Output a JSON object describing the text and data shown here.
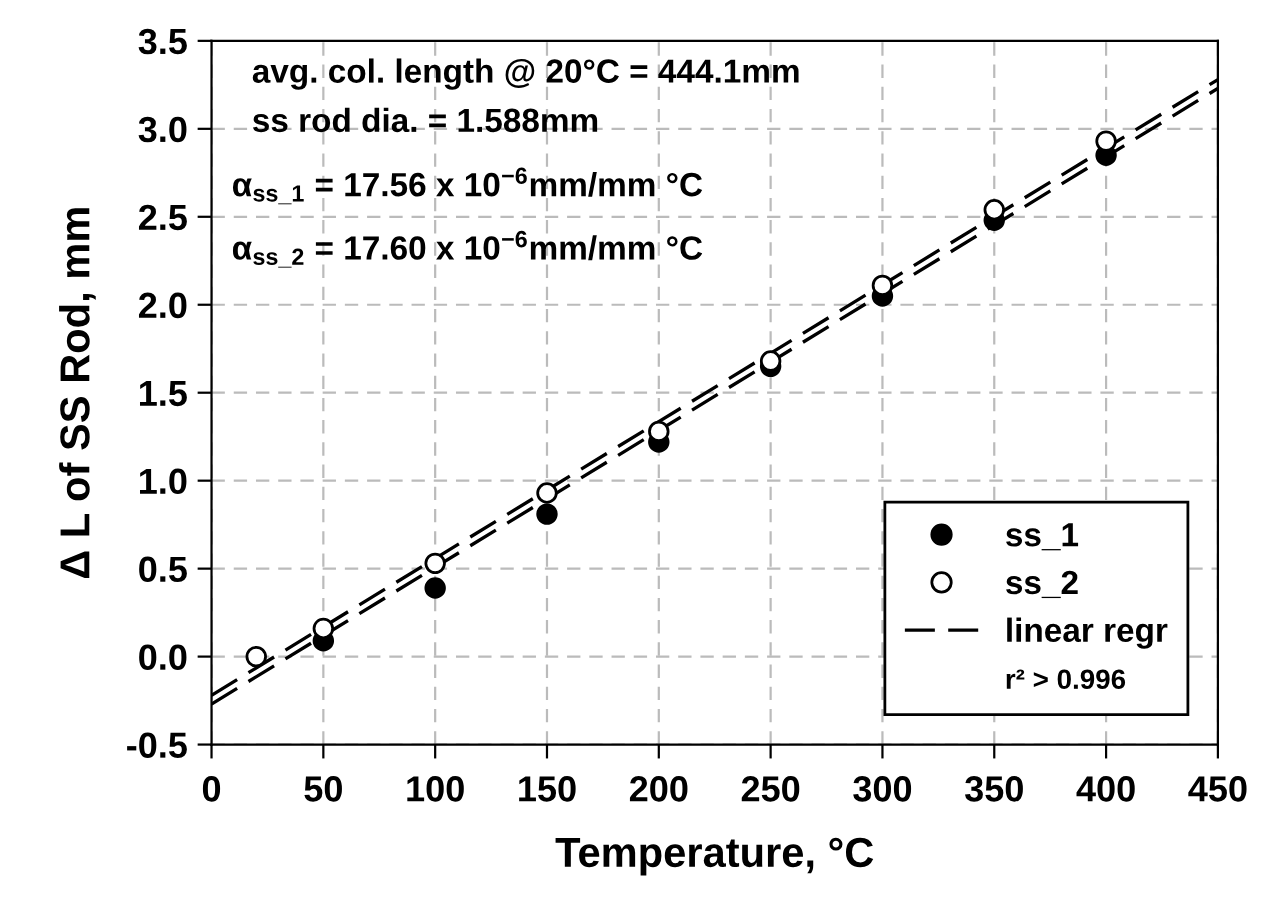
{
  "chart_data": {
    "type": "scatter",
    "xlabel": "Temperature, °C",
    "ylabel": "Δ L of SS Rod, mm",
    "xlim": [
      0,
      450
    ],
    "ylim": [
      -0.5,
      3.5
    ],
    "xticks": [
      0,
      50,
      100,
      150,
      200,
      250,
      300,
      350,
      400,
      450
    ],
    "yticks": [
      {
        "value": -0.5,
        "label": "-0.5"
      },
      {
        "value": 0,
        "label": "0.0"
      },
      {
        "value": 0.5,
        "label": "0.5"
      },
      {
        "value": 1,
        "label": "1.0"
      },
      {
        "value": 1.5,
        "label": "1.5"
      },
      {
        "value": 2,
        "label": "2.0"
      },
      {
        "value": 2.5,
        "label": "2.5"
      },
      {
        "value": 3,
        "label": "3.0"
      },
      {
        "value": 3.5,
        "label": "3.5"
      }
    ],
    "grid": true,
    "legend": "bottom right",
    "series": [
      {
        "name": "ss_1",
        "marker": "circle",
        "color": "#000000",
        "x": [
          50,
          100,
          150,
          200,
          250,
          300,
          350,
          400
        ],
        "values": [
          0.09,
          0.39,
          0.81,
          1.22,
          1.65,
          2.05,
          2.48,
          2.85
        ]
      },
      {
        "name": "ss_2",
        "marker": "circle",
        "color": "#ffffff",
        "x": [
          20,
          50,
          100,
          150,
          200,
          250,
          300,
          350,
          400
        ],
        "values": [
          0.0,
          0.16,
          0.53,
          0.93,
          1.28,
          1.68,
          2.11,
          2.54,
          2.93
        ]
      },
      {
        "name": "linear regr",
        "type": "line",
        "marker": "none",
        "line_style": "dashed",
        "color": "#000000",
        "x": [
          0,
          450
        ],
        "values": [
          -0.27,
          3.23
        ]
      },
      {
        "type": "line",
        "marker": "none",
        "line_style": "dashed",
        "color": "#000000",
        "x": [
          0,
          450
        ],
        "values": [
          -0.22,
          3.28
        ]
      }
    ],
    "annotations": [
      "avg. col. length @ 20°C = 444.1mm",
      "ss rod dia. = 1.588mm",
      "α$_{ss_1}$ = 17.56 x 10$^{−6}$mm/mm °C",
      "α$_{ss_2}$ = 17.60 x 10$^{−6}$mm/mm °C",
      "r² > 0.996"
    ]
  }
}
